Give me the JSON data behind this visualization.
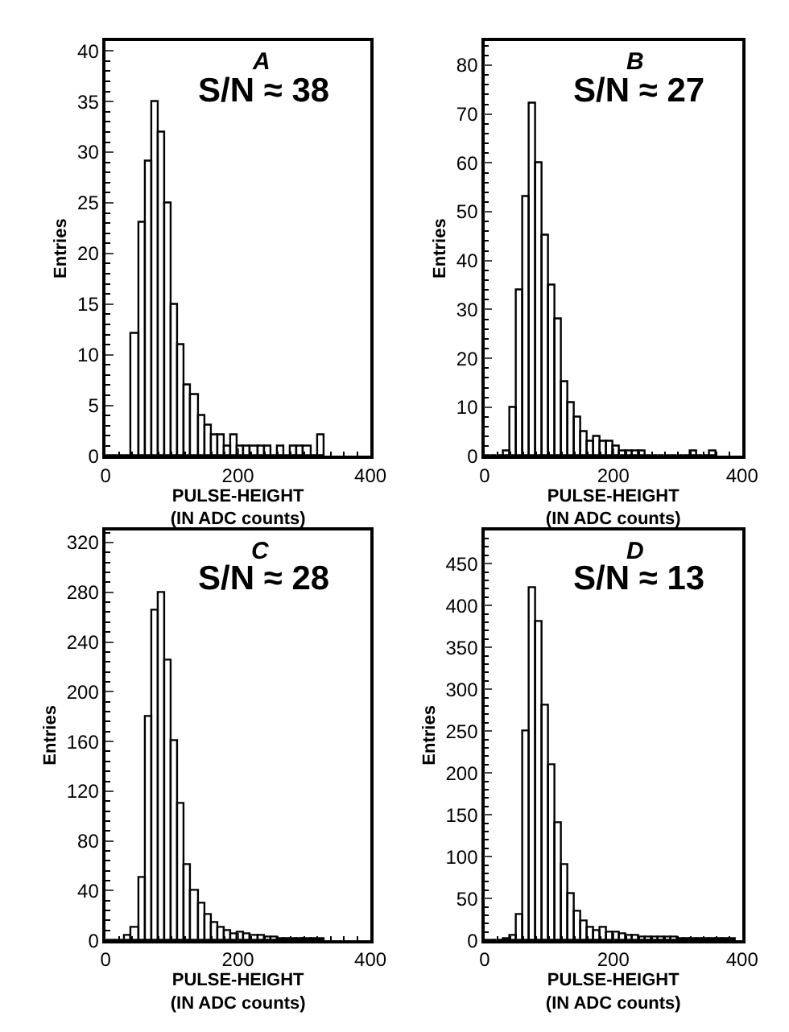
{
  "chart_data": [
    {
      "type": "histogram",
      "title": "A",
      "xlabel": "PULSE-HEIGHT\n(IN ADC counts)",
      "ylabel": "Entries",
      "annotations": [
        "S/N ≈ 38"
      ],
      "color": "#000000",
      "bins": [
        0,
        10,
        20,
        30,
        40,
        50,
        60,
        70,
        80,
        90,
        100,
        110,
        120,
        130,
        140,
        150,
        160,
        170,
        180,
        190,
        200,
        210,
        220,
        230,
        240,
        250,
        260,
        270,
        280,
        290,
        300,
        310,
        320,
        330
      ],
      "values": [
        0,
        0,
        0,
        0,
        12,
        23,
        29,
        35,
        32,
        25,
        15,
        11,
        7,
        6,
        4,
        3,
        2,
        2,
        1,
        2,
        1,
        1,
        1,
        1,
        1,
        0,
        1,
        0,
        1,
        1,
        1,
        0,
        2
      ],
      "xlim": [
        0,
        400
      ],
      "xticks": [
        0,
        200,
        400
      ],
      "ylim": [
        0,
        41
      ],
      "yticks": [
        0,
        5,
        10,
        15,
        20,
        25,
        30,
        35,
        40
      ]
    },
    {
      "type": "histogram",
      "title": "B",
      "xlabel": "PULSE-HEIGHT\n(IN ADC counts)",
      "ylabel": "Entries",
      "annotations": [
        "S/N ≈ 27"
      ],
      "color": "#000000",
      "bins": [
        0,
        10,
        20,
        30,
        40,
        50,
        60,
        70,
        80,
        90,
        100,
        110,
        120,
        130,
        140,
        150,
        160,
        170,
        180,
        190,
        200,
        210,
        220,
        230,
        240,
        250,
        260,
        270,
        280,
        290,
        300,
        310,
        320,
        330,
        340,
        350,
        360
      ],
      "values": [
        0,
        0,
        0,
        1,
        10,
        34,
        53,
        72,
        60,
        45,
        35,
        28,
        15,
        11,
        8,
        5,
        3,
        4,
        3,
        3,
        2,
        1,
        1,
        1,
        1,
        0,
        0,
        0,
        0,
        0,
        0,
        0,
        1,
        0,
        0,
        1
      ],
      "xlim": [
        0,
        400
      ],
      "xticks": [
        0,
        200,
        400
      ],
      "ylim": [
        0,
        85
      ],
      "yticks": [
        0,
        10,
        20,
        30,
        40,
        50,
        60,
        70,
        80
      ]
    },
    {
      "type": "histogram",
      "title": "C",
      "xlabel": "PULSE-HEIGHT\n(IN ADC counts)",
      "ylabel": "Entries",
      "annotations": [
        "S/N ≈ 28"
      ],
      "color": "#000000",
      "bins": [
        0,
        10,
        20,
        30,
        40,
        50,
        60,
        70,
        80,
        90,
        100,
        110,
        120,
        130,
        140,
        150,
        160,
        170,
        180,
        190,
        200,
        210,
        220,
        230,
        240,
        250,
        260,
        270,
        280,
        290,
        300,
        310,
        320,
        330
      ],
      "values": [
        0,
        0,
        0,
        3,
        10,
        50,
        180,
        265,
        280,
        225,
        160,
        110,
        60,
        40,
        30,
        20,
        14,
        10,
        8,
        5,
        6,
        5,
        4,
        3,
        2,
        2,
        1,
        1,
        1,
        1,
        1,
        1,
        1
      ],
      "xlim": [
        0,
        400
      ],
      "xticks": [
        0,
        200,
        400
      ],
      "ylim": [
        0,
        330
      ],
      "yticks": [
        0,
        40,
        80,
        120,
        160,
        200,
        240,
        280,
        320
      ]
    },
    {
      "type": "histogram",
      "title": "D",
      "xlabel": "PULSE-HEIGHT\n(IN ADC counts)",
      "ylabel": "Entries",
      "annotations": [
        "S/N ≈ 13"
      ],
      "color": "#000000",
      "bins": [
        0,
        10,
        20,
        30,
        40,
        50,
        60,
        70,
        80,
        90,
        100,
        110,
        120,
        130,
        140,
        150,
        160,
        170,
        180,
        190,
        200,
        210,
        220,
        230,
        240,
        250,
        260,
        270,
        280,
        290,
        300,
        310,
        320,
        330,
        340,
        350,
        360,
        370,
        380,
        390
      ],
      "values": [
        0,
        0,
        0,
        1,
        5,
        30,
        250,
        420,
        380,
        280,
        210,
        140,
        90,
        55,
        35,
        22,
        15,
        12,
        15,
        10,
        10,
        8,
        6,
        5,
        4,
        3,
        3,
        3,
        3,
        3,
        2,
        2,
        2,
        2,
        2,
        1,
        1,
        1,
        1
      ],
      "xlim": [
        0,
        400
      ],
      "xticks": [
        0,
        200,
        400
      ],
      "ylim": [
        0,
        490
      ],
      "yticks": [
        0,
        50,
        100,
        150,
        200,
        250,
        300,
        350,
        400,
        450
      ]
    }
  ]
}
